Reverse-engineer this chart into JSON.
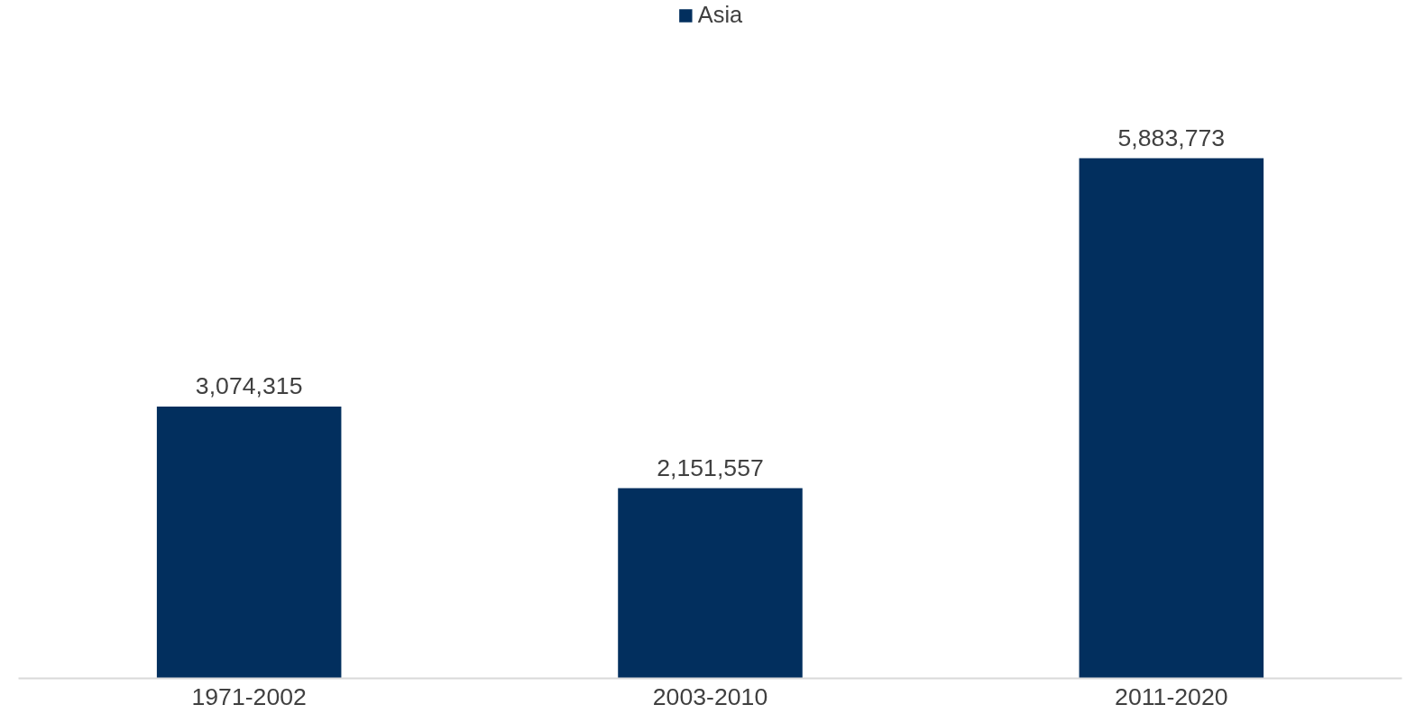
{
  "chart_data": {
    "type": "bar",
    "categories": [
      "1971-2002",
      "2003-2010",
      "2011-2020"
    ],
    "series": [
      {
        "name": "Asia",
        "color": "#022f5e",
        "values": [
          3074315,
          2151557,
          5883773
        ],
        "value_labels": [
          "3,074,315",
          "2,151,557",
          "5,883,773"
        ]
      }
    ],
    "legend": "top",
    "grid": false,
    "tick_labels": "x"
  }
}
